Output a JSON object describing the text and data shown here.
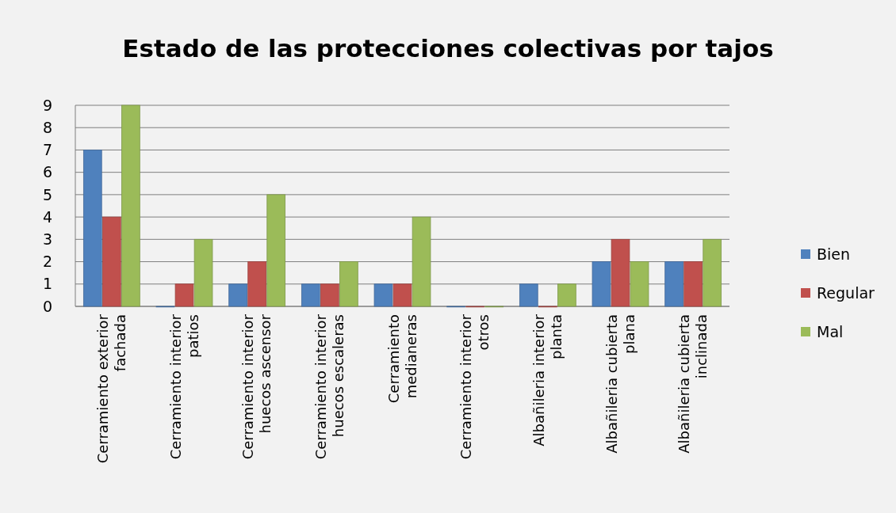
{
  "chart_data": {
    "type": "bar",
    "title": "Estado de las protecciones colectivas por tajos",
    "categories": [
      "Cerramiento exterior fachada",
      "Cerramiento interior patios",
      "Cerramiento interior huecos ascensor",
      "Cerramiento interior huecos escaleras",
      "Cerramiento medianeras",
      "Cerramiento interior otros",
      "Albañileria interior planta",
      "Albañileria cubierta plana",
      "Albañileria cubierta inclinada"
    ],
    "series": [
      {
        "name": "Bien",
        "color": "#4f81bd",
        "values": [
          7,
          0,
          1,
          1,
          1,
          0,
          1,
          2,
          2
        ]
      },
      {
        "name": "Regular",
        "color": "#c0504d",
        "values": [
          4,
          1,
          2,
          1,
          1,
          0,
          0,
          3,
          2
        ]
      },
      {
        "name": "Mal",
        "color": "#9bbb59",
        "values": [
          9,
          3,
          5,
          2,
          4,
          0,
          1,
          2,
          3
        ]
      }
    ],
    "ylim": [
      0,
      9
    ],
    "yticks": [
      0,
      1,
      2,
      3,
      4,
      5,
      6,
      7,
      8,
      9
    ],
    "grid": "y",
    "legend": "right"
  }
}
